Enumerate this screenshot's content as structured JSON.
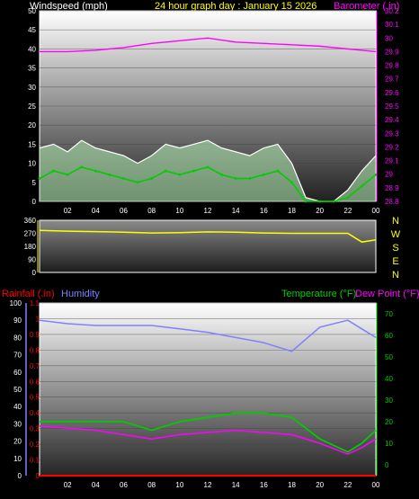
{
  "colors": {
    "background": "#000000",
    "frame": "#ffffff",
    "wind_speed": "#ffffff",
    "wind_avg": "#00cc00",
    "wind_gust_fill": "#b5f0b5",
    "barometer": "#ff00ff",
    "direction": "#ffff00",
    "humidity": "#8080ff",
    "temperature": "#00cc00",
    "dew_point": "#ff00ff",
    "rainfall": "#ff0000",
    "title": "#ffff00",
    "axis_tick": "#ffffff"
  },
  "header": {
    "left_label": "Windspeed (mph)",
    "center_title": "24 hour graph day : January 15 2026",
    "right_label": "Barometer (.in)"
  },
  "lower_header": {
    "rainfall_label": "Rainfall (.in)",
    "humidity_label": "Humidity",
    "temperature_label": "Temperature (°F)",
    "dewpoint_label": "Dew Point (°F)"
  },
  "direction_letters": [
    "N",
    "W",
    "S",
    "E",
    "N"
  ],
  "x_ticks": [
    "02",
    "04",
    "06",
    "08",
    "10",
    "12",
    "14",
    "16",
    "18",
    "20",
    "22",
    "00"
  ],
  "chart_data": [
    {
      "type": "line",
      "title": "Windspeed (mph) / Barometer (.in)",
      "x_unit": "hour",
      "x_ticks": [
        "02",
        "04",
        "06",
        "08",
        "10",
        "12",
        "14",
        "16",
        "18",
        "20",
        "22",
        "00"
      ],
      "left_axis": {
        "label": "Windspeed (mph)",
        "range": [
          0,
          50
        ],
        "ticks": [
          "0",
          "5",
          "10",
          "15",
          "20",
          "25",
          "30",
          "35",
          "40",
          "45",
          "50"
        ]
      },
      "right_axis": {
        "label": "Barometer (.in)",
        "range": [
          28.8,
          30.2
        ],
        "ticks": [
          "28.8",
          "28.9",
          "29",
          "29.1",
          "29.2",
          "29.3",
          "29.4",
          "29.5",
          "29.6",
          "29.7",
          "29.8",
          "29.9",
          "30",
          "30.1",
          "30.2"
        ]
      },
      "series": [
        {
          "name": "Barometer",
          "axis": "right",
          "x": [
            0,
            2,
            4,
            6,
            8,
            10,
            12,
            14,
            16,
            18,
            20,
            22,
            24
          ],
          "values": [
            29.9,
            29.9,
            29.91,
            29.93,
            29.96,
            29.98,
            30.0,
            29.97,
            29.96,
            29.95,
            29.94,
            29.92,
            29.9
          ]
        },
        {
          "name": "Windspeed",
          "axis": "left",
          "x": [
            0,
            1,
            2,
            3,
            4,
            5,
            6,
            7,
            8,
            9,
            10,
            11,
            12,
            13,
            14,
            15,
            16,
            17,
            18,
            19,
            20,
            21,
            22,
            23,
            24
          ],
          "values": [
            6,
            8,
            7,
            9,
            8,
            7,
            6,
            5,
            6,
            8,
            7,
            8,
            9,
            7,
            6,
            6,
            7,
            8,
            5,
            0,
            0,
            0,
            1,
            4,
            7
          ]
        },
        {
          "name": "Wind Gust",
          "axis": "left",
          "x": [
            0,
            1,
            2,
            3,
            4,
            5,
            6,
            7,
            8,
            9,
            10,
            11,
            12,
            13,
            14,
            15,
            16,
            17,
            18,
            19,
            20,
            21,
            22,
            23,
            24
          ],
          "values": [
            14,
            15,
            13,
            16,
            14,
            13,
            12,
            10,
            12,
            15,
            14,
            15,
            16,
            14,
            13,
            12,
            14,
            15,
            10,
            1,
            0,
            0,
            3,
            8,
            12
          ]
        }
      ]
    },
    {
      "type": "line",
      "title": "Wind Direction",
      "x_unit": "hour",
      "y_axis": {
        "range": [
          0,
          360
        ],
        "ticks": [
          "0",
          "90",
          "180",
          "270",
          "360"
        ]
      },
      "series": [
        {
          "name": "Direction",
          "x": [
            0,
            2,
            4,
            6,
            8,
            10,
            12,
            14,
            16,
            18,
            20,
            22,
            23,
            24
          ],
          "values": [
            290,
            285,
            282,
            278,
            272,
            275,
            280,
            278,
            272,
            270,
            270,
            270,
            210,
            225
          ]
        }
      ]
    },
    {
      "type": "line",
      "title": "Rainfall / Humidity / Temperature / Dew Point",
      "x_unit": "hour",
      "x_ticks": [
        "02",
        "04",
        "06",
        "08",
        "10",
        "12",
        "14",
        "16",
        "18",
        "20",
        "22",
        "00"
      ],
      "axes": {
        "humidity": {
          "range": [
            0,
            100
          ],
          "ticks": [
            "0",
            "10",
            "20",
            "30",
            "40",
            "50",
            "60",
            "70",
            "80",
            "90",
            "100"
          ]
        },
        "rainfall": {
          "range": [
            0,
            1.1
          ],
          "ticks": [
            "0",
            "0.1",
            "0.2",
            "0.3",
            "0.4",
            "0.5",
            "0.6",
            "0.7",
            "0.8",
            "0.9",
            "1",
            "1.1"
          ]
        },
        "temperature": {
          "range": [
            -5,
            75
          ],
          "ticks": [
            "0",
            "10",
            "20",
            "30",
            "40",
            "50",
            "60",
            "70"
          ]
        }
      },
      "series": [
        {
          "name": "Humidity",
          "axis": "humidity",
          "x": [
            0,
            2,
            4,
            6,
            8,
            10,
            12,
            14,
            16,
            18,
            20,
            22,
            23,
            24
          ],
          "values": [
            90,
            88,
            87,
            87,
            87,
            85,
            83,
            80,
            77,
            72,
            86,
            90,
            85,
            80
          ]
        },
        {
          "name": "Temperature",
          "axis": "temperature",
          "x": [
            0,
            2,
            4,
            6,
            8,
            10,
            12,
            14,
            16,
            18,
            20,
            22,
            23,
            24
          ],
          "values": [
            20,
            20,
            20,
            20,
            16,
            20,
            22,
            24,
            24,
            22,
            12,
            6,
            10,
            16
          ]
        },
        {
          "name": "Dew Point",
          "axis": "temperature",
          "x": [
            0,
            2,
            4,
            6,
            8,
            10,
            12,
            14,
            16,
            18,
            20,
            22,
            23,
            24
          ],
          "values": [
            18,
            17,
            16,
            14,
            12,
            14,
            15,
            16,
            15,
            14,
            10,
            5,
            8,
            12
          ]
        },
        {
          "name": "Rainfall",
          "axis": "rainfall",
          "x": [
            0,
            24
          ],
          "values": [
            0,
            0
          ]
        }
      ]
    }
  ]
}
